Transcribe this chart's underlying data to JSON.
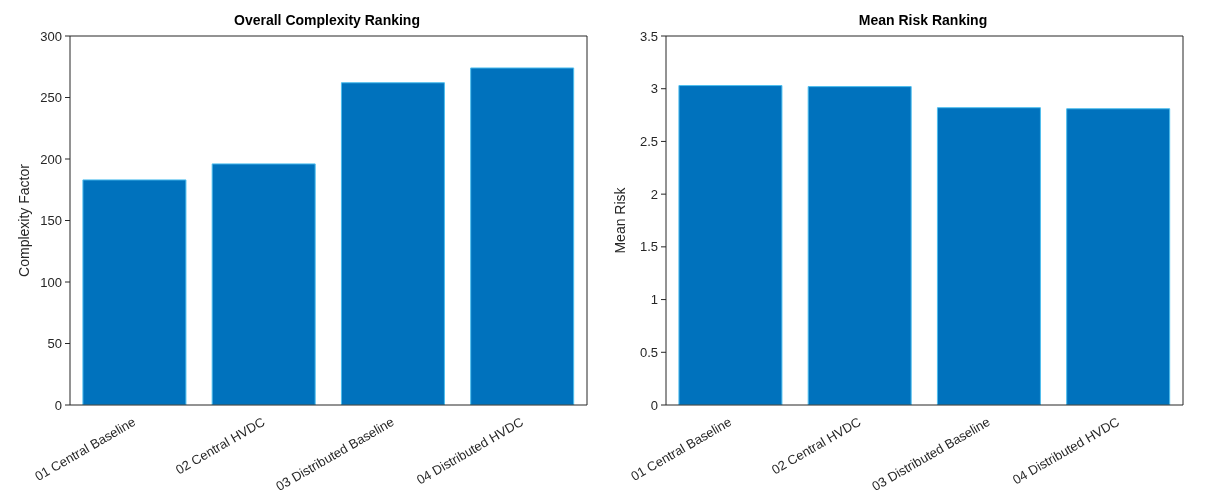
{
  "chart_data": [
    {
      "type": "bar",
      "title": "Overall Complexity Ranking",
      "ylabel": "Complexity Factor",
      "categories": [
        "01 Central Baseline",
        "02 Central HVDC",
        "03 Distributed Baseline",
        "04 Distributed HVDC"
      ],
      "values": [
        183,
        196,
        262,
        274
      ],
      "color": "#0072bd",
      "ylim": [
        0,
        300
      ],
      "yticks": [
        0,
        50,
        100,
        150,
        200,
        250,
        300
      ]
    },
    {
      "type": "bar",
      "title": "Mean Risk Ranking",
      "ylabel": "Mean Risk",
      "categories": [
        "01 Central Baseline",
        "02 Central HVDC",
        "03 Distributed Baseline",
        "04 Distributed HVDC"
      ],
      "values": [
        3.03,
        3.02,
        2.82,
        2.81
      ],
      "color": "#0072bd",
      "ylim": [
        0,
        3.5
      ],
      "yticks": [
        0,
        0.5,
        1,
        1.5,
        2,
        2.5,
        3,
        3.5
      ]
    }
  ]
}
